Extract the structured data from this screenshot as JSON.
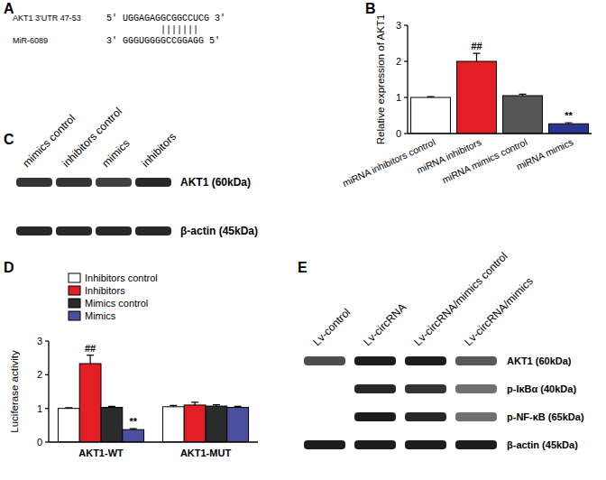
{
  "panel_labels": [
    "A",
    "B",
    "C",
    "D",
    "E"
  ],
  "sequence_alignment": {
    "rows": [
      {
        "name": "AKT1 3'UTR 47-53",
        "sequence": "5' UGGAGAGGCGGCCUCG 3'"
      },
      {
        "name": "MiR-6089",
        "sequence": "3' GGGUGGGGCCGGAGG 5'"
      }
    ],
    "pairing": "|||||||"
  },
  "blot_c": {
    "lanes": [
      "mimics control",
      "inhibitors control",
      "mimics",
      "inhibitors"
    ],
    "rows": [
      {
        "label": "AKT1 (60kDa)",
        "intensity": [
          0.85,
          0.85,
          0.8,
          0.9
        ]
      },
      {
        "label": "β-actin (45kDa)",
        "intensity": [
          0.9,
          0.9,
          0.9,
          0.9
        ]
      }
    ]
  },
  "blot_e": {
    "lanes": [
      "Lv-control",
      "Lv-circRNA",
      "Lv-circRNA/mimics control",
      "Lv-circRNA/mimics"
    ],
    "rows": [
      {
        "label": "AKT1 (60kDa)",
        "intensity": [
          0.75,
          0.95,
          0.95,
          0.7
        ]
      },
      {
        "label": "p-IκBα (40kDa)",
        "intensity": [
          0,
          0.9,
          0.85,
          0.6
        ]
      },
      {
        "label": "p-NF-κB (65kDa)",
        "intensity": [
          0,
          0.95,
          0.9,
          0.6
        ]
      },
      {
        "label": "β-actin (45kDa)",
        "intensity": [
          0.95,
          0.95,
          0.95,
          0.95
        ]
      }
    ]
  },
  "chart_data": [
    {
      "type": "bar",
      "y_label": "Relative expression of AKT1",
      "categories": [
        "miRNA inhibitors control",
        "miRNA inhibitors",
        "miRNA mimics control",
        "miRNA mimics"
      ],
      "values": [
        1.0,
        2.0,
        1.05,
        0.27
      ],
      "errors": [
        0.02,
        0.22,
        0.04,
        0.03
      ],
      "annotations": [
        null,
        "##",
        null,
        "**"
      ],
      "colors": [
        "#ffffff",
        "#e31e24",
        "#555555",
        "#2a3590"
      ],
      "ylim": [
        0,
        3
      ],
      "yticks": [
        0,
        1,
        2,
        3
      ]
    },
    {
      "type": "bar",
      "y_label": "Luciferase activity",
      "categories": [
        "AKT1-WT",
        "AKT1-MUT"
      ],
      "series": [
        {
          "name": "Inhibitors control",
          "color": "#ffffff",
          "values": [
            1.0,
            1.05
          ],
          "errors": [
            0.02,
            0.04
          ],
          "annotations": [
            null,
            null
          ]
        },
        {
          "name": "Inhibitors",
          "color": "#e31e24",
          "values": [
            2.33,
            1.1
          ],
          "errors": [
            0.25,
            0.08
          ],
          "annotations": [
            "##",
            null
          ]
        },
        {
          "name": "Mimics control",
          "color": "#2b2b2b",
          "values": [
            1.03,
            1.07
          ],
          "errors": [
            0.03,
            0.04
          ],
          "annotations": [
            null,
            null
          ]
        },
        {
          "name": "Mimics",
          "color": "#4b4f9e",
          "values": [
            0.37,
            1.03
          ],
          "errors": [
            0.03,
            0.03
          ],
          "annotations": [
            "**",
            null
          ]
        }
      ],
      "ylim": [
        0,
        3
      ],
      "yticks": [
        0,
        1,
        2,
        3
      ],
      "legend": "upper left"
    }
  ]
}
